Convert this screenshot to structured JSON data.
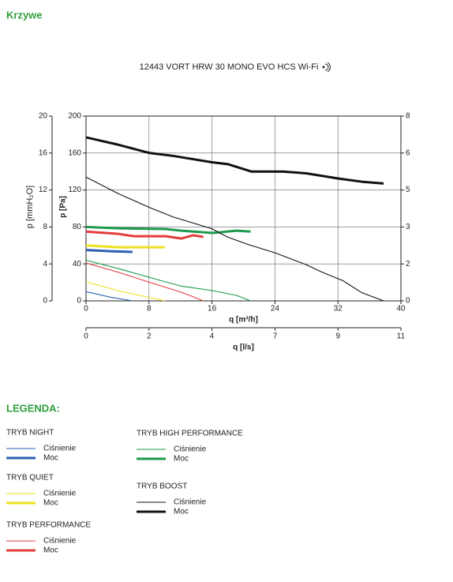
{
  "header": {
    "title": "Krzywe"
  },
  "chart_data": {
    "type": "line",
    "title": "12443 VORT HRW 30 MONO EVO HCS Wi-Fi",
    "xlabel": "q [m³/h]",
    "xlim": [
      0,
      40
    ],
    "xticks": [
      0,
      8,
      16,
      24,
      32,
      40
    ],
    "x2label": "q [l/s]",
    "x2lim": [
      0,
      11.11
    ],
    "x2ticks": [
      0,
      {
        "value": 2.22,
        "label": "2"
      },
      {
        "value": 4.44,
        "label": "4"
      },
      {
        "value": 6.67,
        "label": "7"
      },
      {
        "value": 8.89,
        "label": "9"
      },
      {
        "value": 11.11,
        "label": "11"
      }
    ],
    "ylabel": "p [Pa]",
    "ylim": [
      0,
      200
    ],
    "yticks": [
      0,
      40,
      80,
      120,
      160,
      200
    ],
    "y3label": "p [mmH₂O]",
    "y3lim": [
      0,
      20
    ],
    "y3ticks": [
      0,
      4,
      8,
      12,
      16,
      20
    ],
    "y2lim": [
      0,
      8
    ],
    "y2ticks": [
      0,
      {
        "value": 1.6,
        "label": "2"
      },
      {
        "value": 3.2,
        "label": "3"
      },
      {
        "value": 4.8,
        "label": "5"
      },
      {
        "value": 6.4,
        "label": "6"
      },
      8
    ],
    "grid": true,
    "legend_title": "LEGENDA:",
    "modes": [
      {
        "name": "TRYB NIGHT",
        "color": "#2c5fb0",
        "series": [
          {
            "name": "Ciśnienie",
            "x": [
              0,
              3.1,
              5.9
            ],
            "values": [
              10,
              4,
              0
            ]
          },
          {
            "name": "Moc",
            "axis": "y2",
            "x": [
              0,
              3.1,
              5.9
            ],
            "values": [
              2.2,
              2.15,
              2.12
            ]
          }
        ]
      },
      {
        "name": "TRYB QUIET",
        "color": "#ece11e",
        "series": [
          {
            "name": "Ciśnienie",
            "x": [
              0,
              4.1,
              10
            ],
            "values": [
              20.5,
              11,
              0
            ]
          },
          {
            "name": "Moc",
            "axis": "y2",
            "x": [
              0,
              4.1,
              10
            ],
            "values": [
              2.4,
              2.32,
              2.32
            ]
          }
        ]
      },
      {
        "name": "TRYB PERFORMANCE",
        "color": "#e53c3c",
        "series": [
          {
            "name": "Ciśnienie",
            "x": [
              0,
              4.1,
              8.1,
              12.1,
              14.9
            ],
            "values": [
              41,
              31,
              20,
              9.4,
              0
            ]
          },
          {
            "name": "Moc",
            "axis": "y2",
            "x": [
              0,
              4.1,
              6.1,
              10.1,
              12.1,
              13.6,
              14.9
            ],
            "values": [
              3.0,
              2.9,
              2.8,
              2.8,
              2.7,
              2.84,
              2.77
            ]
          }
        ]
      },
      {
        "name": "TRYB HIGH PERFORMANCE",
        "color": "#1e9a4c",
        "series": [
          {
            "name": "Ciśnienie",
            "x": [
              0,
              4.1,
              10.1,
              12.1,
              16.1,
              19.1,
              20.9
            ],
            "values": [
              44,
              35,
              20.5,
              16,
              11,
              6,
              0
            ]
          },
          {
            "name": "Moc",
            "axis": "y2",
            "x": [
              0,
              4.1,
              10.1,
              12.1,
              16.1,
              19.1,
              20.9
            ],
            "values": [
              3.2,
              3.14,
              3.11,
              3.04,
              2.94,
              3.04,
              3.0
            ]
          }
        ]
      },
      {
        "name": "TRYB BOOST",
        "color": "#111111",
        "series": [
          {
            "name": "Ciśnienie",
            "x": [
              0,
              4.1,
              8.1,
              11,
              16,
              18,
              20.6,
              24,
              28,
              30,
              32.6,
              35,
              37.8
            ],
            "values": [
              134,
              116,
              101,
              91,
              78,
              69,
              61,
              52,
              39,
              31,
              22,
              9,
              0
            ]
          },
          {
            "name": "Moc",
            "axis": "y2",
            "x": [
              0,
              4.1,
              8.1,
              11,
              16,
              18,
              21,
              25,
              28,
              32,
              35,
              37.8
            ],
            "values": [
              7.08,
              6.76,
              6.4,
              6.28,
              6.0,
              5.92,
              5.6,
              5.6,
              5.52,
              5.3,
              5.16,
              5.08
            ]
          }
        ]
      }
    ]
  }
}
